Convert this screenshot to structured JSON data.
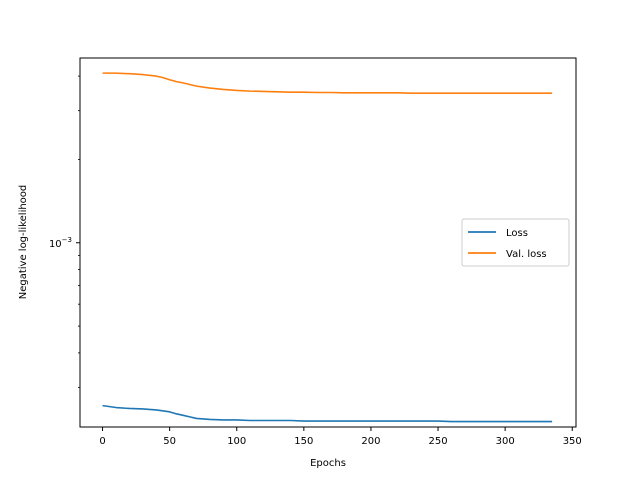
{
  "chart_data": {
    "type": "line",
    "xlabel": "Epochs",
    "ylabel": "Negative log-likelihood",
    "x_ticks": [
      0,
      50,
      100,
      150,
      200,
      250,
      300,
      350
    ],
    "xlim": [
      -16.8,
      352.8
    ],
    "ylim": [
      0.000216,
      0.00465
    ],
    "yscale": "log",
    "y_ticks": [
      {
        "value": 0.001,
        "base": "10",
        "exponent": "−3"
      }
    ],
    "grid": false,
    "legend_position": "center-right",
    "series": [
      {
        "name": "Loss",
        "color": "#1f77b4",
        "points": [
          [
            0,
            0.000258
          ],
          [
            10,
            0.000254
          ],
          [
            20,
            0.000252
          ],
          [
            30,
            0.000251
          ],
          [
            40,
            0.000249
          ],
          [
            50,
            0.000245
          ],
          [
            55,
            0.000241
          ],
          [
            60,
            0.000238
          ],
          [
            65,
            0.000235
          ],
          [
            70,
            0.000232
          ],
          [
            80,
            0.00023
          ],
          [
            90,
            0.000229
          ],
          [
            100,
            0.000229
          ],
          [
            110,
            0.000228
          ],
          [
            120,
            0.000228
          ],
          [
            130,
            0.000228
          ],
          [
            140,
            0.000228
          ],
          [
            150,
            0.000227
          ],
          [
            160,
            0.000227
          ],
          [
            170,
            0.000227
          ],
          [
            180,
            0.000227
          ],
          [
            190,
            0.000227
          ],
          [
            200,
            0.000227
          ],
          [
            210,
            0.000227
          ],
          [
            220,
            0.000227
          ],
          [
            230,
            0.000227
          ],
          [
            240,
            0.000227
          ],
          [
            250,
            0.000227
          ],
          [
            260,
            0.000226
          ],
          [
            270,
            0.000226
          ],
          [
            280,
            0.000226
          ],
          [
            290,
            0.000226
          ],
          [
            300,
            0.000226
          ],
          [
            310,
            0.000226
          ],
          [
            320,
            0.000226
          ],
          [
            330,
            0.000226
          ],
          [
            335,
            0.000226
          ]
        ]
      },
      {
        "name": "Val. loss",
        "color": "#ff7f0e",
        "points": [
          [
            0,
            0.0041
          ],
          [
            10,
            0.0041
          ],
          [
            20,
            0.00408
          ],
          [
            30,
            0.00405
          ],
          [
            40,
            0.004
          ],
          [
            45,
            0.00395
          ],
          [
            50,
            0.00388
          ],
          [
            55,
            0.00382
          ],
          [
            60,
            0.00378
          ],
          [
            65,
            0.00373
          ],
          [
            70,
            0.00368
          ],
          [
            80,
            0.00362
          ],
          [
            90,
            0.00358
          ],
          [
            100,
            0.00355
          ],
          [
            110,
            0.00353
          ],
          [
            120,
            0.00352
          ],
          [
            130,
            0.00351
          ],
          [
            140,
            0.0035
          ],
          [
            150,
            0.0035
          ],
          [
            160,
            0.00349
          ],
          [
            170,
            0.00349
          ],
          [
            180,
            0.00348
          ],
          [
            190,
            0.00348
          ],
          [
            200,
            0.00348
          ],
          [
            210,
            0.00348
          ],
          [
            220,
            0.00348
          ],
          [
            230,
            0.00347
          ],
          [
            240,
            0.00347
          ],
          [
            250,
            0.00347
          ],
          [
            260,
            0.00347
          ],
          [
            270,
            0.00347
          ],
          [
            280,
            0.00347
          ],
          [
            290,
            0.00347
          ],
          [
            300,
            0.00347
          ],
          [
            310,
            0.00347
          ],
          [
            320,
            0.00347
          ],
          [
            330,
            0.00347
          ],
          [
            335,
            0.00347
          ]
        ]
      }
    ]
  }
}
